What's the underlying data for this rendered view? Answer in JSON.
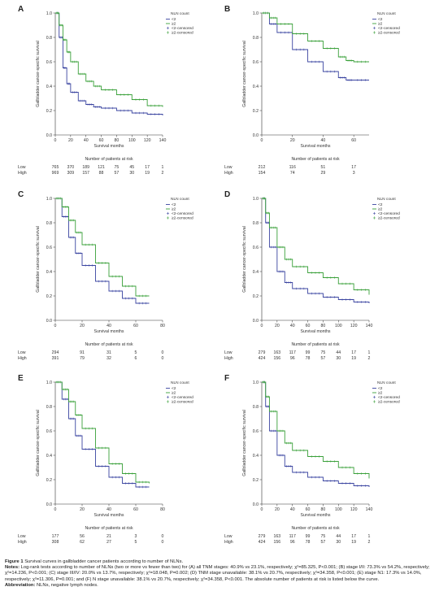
{
  "chart_data": [
    {
      "panel": "A",
      "type": "line",
      "ylabel": "Gallbladder cancer-specific survival",
      "xlabel": "Survival months",
      "xlim": [
        0,
        140
      ],
      "ylim": [
        0,
        1.0
      ],
      "xticks": [
        0,
        20,
        40,
        60,
        80,
        100,
        120,
        140
      ],
      "yticks": [
        0.0,
        0.2,
        0.4,
        0.6,
        0.8,
        1.0
      ],
      "legend_title": "NLN count",
      "legend": [
        "<2",
        "≥2",
        "<2-censored",
        "≥2-censored"
      ],
      "series": [
        {
          "name": "<2",
          "color": "#3a44a0",
          "x": [
            0,
            5,
            10,
            15,
            20,
            30,
            40,
            50,
            60,
            80,
            100,
            120,
            140
          ],
          "y": [
            1.0,
            0.8,
            0.55,
            0.42,
            0.35,
            0.28,
            0.25,
            0.23,
            0.22,
            0.2,
            0.18,
            0.17,
            0.16
          ]
        },
        {
          "name": "≥2",
          "color": "#3aa03a",
          "x": [
            0,
            5,
            10,
            15,
            20,
            30,
            40,
            50,
            60,
            80,
            100,
            120,
            140
          ],
          "y": [
            1.0,
            0.9,
            0.78,
            0.68,
            0.6,
            0.5,
            0.44,
            0.4,
            0.37,
            0.33,
            0.29,
            0.24,
            0.23
          ]
        }
      ],
      "risk_title": "Number of patients at risk",
      "risk_x": [
        0,
        20,
        40,
        60,
        80,
        100,
        120,
        140
      ],
      "risk_rows": [
        {
          "label": "Low",
          "values": [
            "765",
            "370",
            "189",
            "121",
            "75",
            "45",
            "17",
            "1"
          ]
        },
        {
          "label": "High",
          "values": [
            "969",
            "309",
            "157",
            "88",
            "57",
            "30",
            "19",
            "2"
          ]
        }
      ]
    },
    {
      "panel": "B",
      "type": "line",
      "ylabel": "Gallbladder cancer-specific survival",
      "xlabel": "Survival months",
      "xlim": [
        0,
        70
      ],
      "ylim": [
        0,
        1.0
      ],
      "xticks": [
        0,
        20,
        40,
        60
      ],
      "yticks": [
        0.0,
        0.2,
        0.4,
        0.6,
        0.8,
        1.0
      ],
      "legend_title": "NLN count",
      "legend": [
        "<2",
        "≥2",
        "<2-censored",
        "≥2-censored"
      ],
      "series": [
        {
          "name": "<2",
          "color": "#3a44a0",
          "x": [
            0,
            5,
            10,
            20,
            30,
            40,
            50,
            55,
            60,
            70
          ],
          "y": [
            1.0,
            0.91,
            0.84,
            0.7,
            0.6,
            0.52,
            0.47,
            0.45,
            0.45,
            0.45
          ]
        },
        {
          "name": "≥2",
          "color": "#3aa03a",
          "x": [
            0,
            5,
            10,
            20,
            30,
            40,
            50,
            55,
            60,
            70
          ],
          "y": [
            1.0,
            0.96,
            0.91,
            0.83,
            0.77,
            0.71,
            0.64,
            0.61,
            0.6,
            0.6
          ]
        }
      ],
      "risk_title": "Number of patients at risk",
      "risk_x": [
        0,
        20,
        40,
        60
      ],
      "risk_rows": [
        {
          "label": "Low",
          "values": [
            "212",
            "116",
            "51",
            "17"
          ]
        },
        {
          "label": "High",
          "values": [
            "154",
            "74",
            "29",
            "3"
          ]
        }
      ]
    },
    {
      "panel": "C",
      "type": "line",
      "ylabel": "Gallbladder cancer-specific survival",
      "xlabel": "Survival months",
      "xlim": [
        0,
        80
      ],
      "ylim": [
        0,
        1.0
      ],
      "xticks": [
        0,
        20,
        40,
        60,
        80
      ],
      "yticks": [
        0.0,
        0.2,
        0.4,
        0.6,
        0.8,
        1.0
      ],
      "legend_title": "NLN count",
      "legend": [
        "<2",
        "≥2",
        "<2-censored",
        "≥2-censored"
      ],
      "series": [
        {
          "name": "<2",
          "color": "#3a44a0",
          "x": [
            0,
            5,
            10,
            15,
            20,
            30,
            40,
            50,
            60,
            70
          ],
          "y": [
            1.0,
            0.85,
            0.68,
            0.55,
            0.45,
            0.32,
            0.24,
            0.18,
            0.14,
            0.14
          ]
        },
        {
          "name": "≥2",
          "color": "#3aa03a",
          "x": [
            0,
            5,
            10,
            15,
            20,
            30,
            40,
            50,
            60,
            70
          ],
          "y": [
            1.0,
            0.93,
            0.82,
            0.72,
            0.62,
            0.47,
            0.36,
            0.28,
            0.2,
            0.2
          ]
        }
      ],
      "risk_title": "Number of patients at risk",
      "risk_x": [
        0,
        20,
        40,
        60,
        80
      ],
      "risk_rows": [
        {
          "label": "Low",
          "values": [
            "294",
            "91",
            "31",
            "5",
            "0"
          ]
        },
        {
          "label": "High",
          "values": [
            "391",
            "79",
            "32",
            "6",
            "0"
          ]
        }
      ]
    },
    {
      "panel": "D",
      "type": "line",
      "ylabel": "Gallbladder cancer-specific survival",
      "xlabel": "Survival months",
      "xlim": [
        0,
        140
      ],
      "ylim": [
        0,
        1.0
      ],
      "xticks": [
        0,
        20,
        40,
        60,
        80,
        100,
        120,
        140
      ],
      "yticks": [
        0.0,
        0.2,
        0.4,
        0.6,
        0.8,
        1.0
      ],
      "legend_title": "NLN count",
      "legend": [
        "<2",
        "≥2",
        "<2-censored",
        "≥2-censored"
      ],
      "series": [
        {
          "name": "<2",
          "color": "#3a44a0",
          "x": [
            0,
            5,
            10,
            20,
            30,
            40,
            60,
            80,
            100,
            120,
            140
          ],
          "y": [
            1.0,
            0.8,
            0.6,
            0.4,
            0.31,
            0.26,
            0.22,
            0.19,
            0.17,
            0.15,
            0.14
          ]
        },
        {
          "name": "≥2",
          "color": "#3aa03a",
          "x": [
            0,
            5,
            10,
            20,
            30,
            40,
            60,
            80,
            100,
            120,
            140
          ],
          "y": [
            1.0,
            0.88,
            0.76,
            0.6,
            0.5,
            0.44,
            0.39,
            0.35,
            0.3,
            0.25,
            0.21
          ]
        }
      ],
      "risk_title": "Number of patients at risk",
      "risk_x": [
        0,
        20,
        40,
        60,
        80,
        100,
        120,
        140
      ],
      "risk_rows": [
        {
          "label": "Low",
          "values": [
            "279",
            "163",
            "117",
            "99",
            "75",
            "44",
            "17",
            "1"
          ]
        },
        {
          "label": "High",
          "values": [
            "424",
            "156",
            "96",
            "78",
            "57",
            "30",
            "19",
            "2"
          ]
        }
      ]
    },
    {
      "panel": "E",
      "type": "line",
      "ylabel": "Gallbladder cancer-specific survival",
      "xlabel": "Survival months",
      "xlim": [
        0,
        80
      ],
      "ylim": [
        0,
        1.0
      ],
      "xticks": [
        0,
        20,
        40,
        60,
        80
      ],
      "yticks": [
        0.0,
        0.2,
        0.4,
        0.6,
        0.8,
        1.0
      ],
      "legend_title": "NLN count",
      "legend": [
        "<2",
        "≥2",
        "<2-censored",
        "≥2-censored"
      ],
      "series": [
        {
          "name": "<2",
          "color": "#3a44a0",
          "x": [
            0,
            5,
            10,
            15,
            20,
            30,
            40,
            50,
            60,
            70
          ],
          "y": [
            1.0,
            0.86,
            0.7,
            0.56,
            0.45,
            0.31,
            0.22,
            0.17,
            0.14,
            0.14
          ]
        },
        {
          "name": "≥2",
          "color": "#3aa03a",
          "x": [
            0,
            5,
            10,
            15,
            20,
            30,
            40,
            50,
            60,
            70
          ],
          "y": [
            1.0,
            0.94,
            0.84,
            0.73,
            0.62,
            0.46,
            0.33,
            0.25,
            0.18,
            0.17
          ]
        }
      ],
      "risk_title": "Number of patients at risk",
      "risk_x": [
        0,
        20,
        40,
        60,
        80
      ],
      "risk_rows": [
        {
          "label": "Low",
          "values": [
            "177",
            "56",
            "21",
            "3",
            "0"
          ]
        },
        {
          "label": "High",
          "values": [
            "308",
            "62",
            "27",
            "5",
            "0"
          ]
        }
      ]
    },
    {
      "panel": "F",
      "type": "line",
      "ylabel": "Gallbladder cancer-specific survival",
      "xlabel": "Survival months",
      "xlim": [
        0,
        140
      ],
      "ylim": [
        0,
        1.0
      ],
      "xticks": [
        0,
        20,
        40,
        60,
        80,
        100,
        120,
        140
      ],
      "yticks": [
        0.0,
        0.2,
        0.4,
        0.6,
        0.8,
        1.0
      ],
      "legend_title": "NLN count",
      "legend": [
        "<2",
        "≥2",
        "<2-censored",
        "≥2-censored"
      ],
      "series": [
        {
          "name": "<2",
          "color": "#3a44a0",
          "x": [
            0,
            5,
            10,
            20,
            30,
            40,
            60,
            80,
            100,
            120,
            140
          ],
          "y": [
            1.0,
            0.8,
            0.6,
            0.4,
            0.31,
            0.26,
            0.22,
            0.19,
            0.17,
            0.15,
            0.14
          ]
        },
        {
          "name": "≥2",
          "color": "#3aa03a",
          "x": [
            0,
            5,
            10,
            20,
            30,
            40,
            60,
            80,
            100,
            120,
            140
          ],
          "y": [
            1.0,
            0.88,
            0.76,
            0.6,
            0.5,
            0.44,
            0.39,
            0.35,
            0.3,
            0.25,
            0.21
          ]
        }
      ],
      "risk_title": "Number of patients at risk",
      "risk_x": [
        0,
        20,
        40,
        60,
        80,
        100,
        120,
        140
      ],
      "risk_rows": [
        {
          "label": "Low",
          "values": [
            "279",
            "163",
            "117",
            "99",
            "75",
            "44",
            "17",
            "1"
          ]
        },
        {
          "label": "High",
          "values": [
            "424",
            "156",
            "96",
            "78",
            "57",
            "30",
            "19",
            "2"
          ]
        }
      ]
    }
  ],
  "caption": {
    "figure_label": "Figure 1",
    "title": "Survival curves in gallbladder cancer patients according to number of NLNs.",
    "notes_label": "Notes:",
    "notes": "Log-rank tests according to number of NLNs (two or more vs fewer than two) for (A) all TNM stages: 40.9% vs 23.1%, respectively; χ²=85.325, P<0.001; (B) stage I/II: 73.3% vs 54.2%, respectively; χ²=14.236, P<0.001; (C) stage III/IV: 20.0% vs 13.7%, respectively; χ²=18.048, P=0.002; (D) TNM stage unavailable: 38.1% vs 20.7%, respectively; χ²=34.358, P<0.001; (E) stage N1: 17.3% vs 14.0%, respectively; χ²=11.306, P=0.001; and (F) N stage unavailable: 38.1% vs 20.7%, respectively; χ²=34.358, P<0.001. The absolute number of patients at risk is listed below the curve.",
    "abbrev_label": "Abbreviation:",
    "abbrev": "NLNs, negative lymph nodes."
  }
}
